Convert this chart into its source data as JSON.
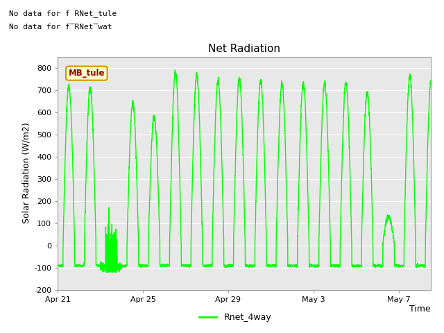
{
  "title": "Net Radiation",
  "xlabel": "Time",
  "ylabel": "Solar Radiation (W/m2)",
  "ylim": [
    -200,
    850
  ],
  "yticks": [
    -200,
    -100,
    0,
    100,
    200,
    300,
    400,
    500,
    600,
    700,
    800
  ],
  "xtick_labels": [
    "Apr 21",
    "Apr 25",
    "Apr 29",
    "May 3",
    "May 7"
  ],
  "xtick_positions": [
    0,
    4,
    8,
    12,
    16
  ],
  "background_color": "#e8e8e8",
  "line_color": "#00ff00",
  "no_data_text1": "No data for f RNet_tule",
  "no_data_text2": "No data for f̅RNet̅wat",
  "mb_tule_label": "MB_tule",
  "legend_label": "Rnet_4way",
  "title_fontsize": 11,
  "axis_label_fontsize": 9,
  "tick_fontsize": 8,
  "fig_bg": "#f0f0f0"
}
